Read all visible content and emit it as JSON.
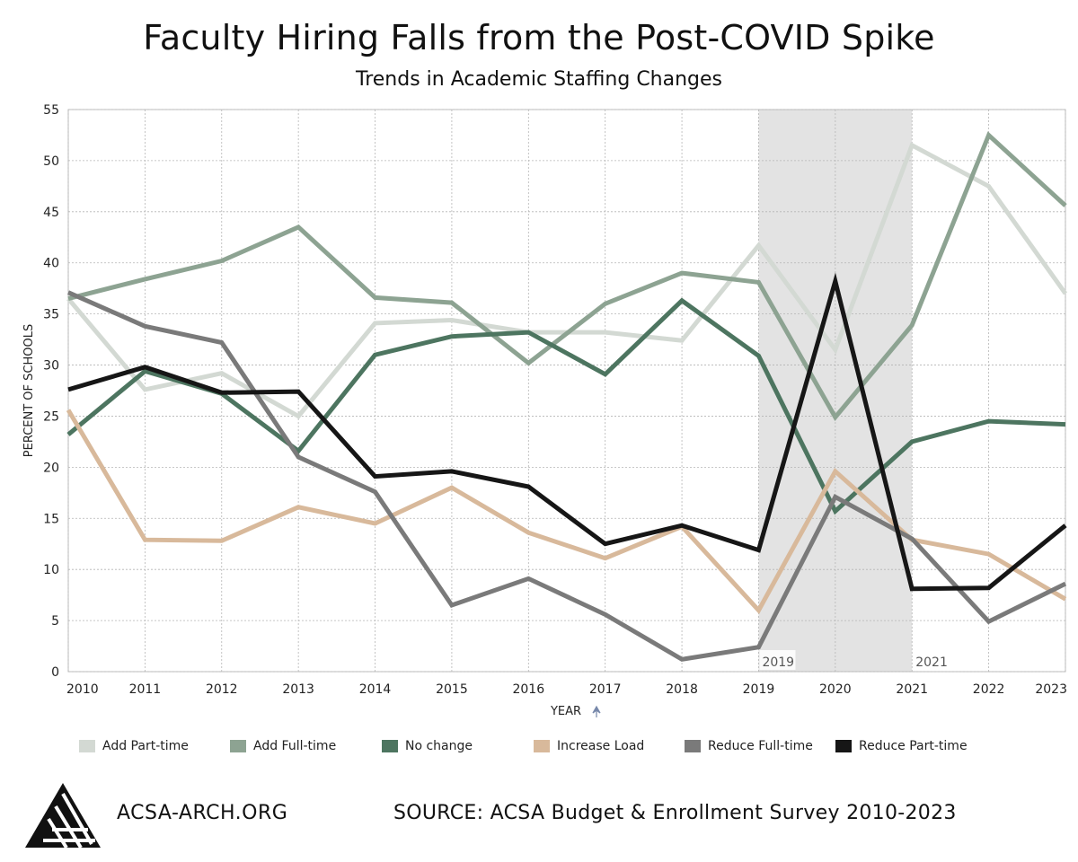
{
  "title": "Faculty Hiring Falls from the Post-COVID Spike",
  "subtitle": "Trends in Academic Staffing Changes",
  "footer": {
    "site": "ACSA-ARCH.ORG",
    "source": "SOURCE: ACSA Budget & Enrollment Survey 2010-2023"
  },
  "logo": {
    "icon": "acsa-triangle-logo"
  },
  "chart_data": {
    "type": "line",
    "xlabel": "YEAR",
    "ylabel": "PERCENT OF SCHOOLS",
    "x": [
      2010,
      2011,
      2012,
      2013,
      2014,
      2015,
      2016,
      2017,
      2018,
      2019,
      2020,
      2021,
      2022,
      2023
    ],
    "xlim": [
      2010,
      2023
    ],
    "ylim": [
      0,
      55
    ],
    "yticks": [
      0,
      5,
      10,
      15,
      20,
      25,
      30,
      35,
      40,
      45,
      50,
      55
    ],
    "grid": true,
    "legend_position": "bottom",
    "shaded_region": {
      "from": 2019,
      "to": 2021,
      "labels": [
        "2019",
        "2021"
      ],
      "color": "#e3e3e3"
    },
    "series": [
      {
        "name": "Add Part-time",
        "color": "#d3d9d3",
        "values": [
          36.5,
          27.6,
          29.2,
          25.0,
          34.1,
          34.4,
          33.2,
          33.2,
          32.4,
          41.7,
          31.5,
          51.5,
          47.5,
          37.0
        ]
      },
      {
        "name": "Add Full-time",
        "color": "#8da392",
        "values": [
          36.5,
          38.4,
          40.2,
          43.5,
          36.6,
          36.1,
          30.2,
          36.0,
          39.0,
          38.1,
          24.9,
          33.9,
          52.5,
          45.6
        ]
      },
      {
        "name": "No change",
        "color": "#4d7560",
        "values": [
          23.2,
          29.4,
          27.2,
          21.6,
          31.0,
          32.8,
          33.2,
          29.1,
          36.3,
          30.9,
          15.7,
          22.5,
          24.5,
          24.2
        ]
      },
      {
        "name": "Increase Load",
        "color": "#d8b99b",
        "values": [
          25.6,
          12.9,
          12.8,
          16.1,
          14.5,
          18.0,
          13.6,
          11.1,
          14.2,
          6.0,
          19.6,
          12.9,
          11.5,
          7.1
        ]
      },
      {
        "name": "Reduce Full-time",
        "color": "#7a7a7a",
        "values": [
          37.1,
          33.8,
          32.2,
          21.0,
          17.6,
          6.5,
          9.1,
          5.6,
          1.2,
          2.4,
          17.1,
          13.0,
          4.9,
          8.6
        ]
      },
      {
        "name": "Reduce Part-time",
        "color": "#161616",
        "values": [
          27.6,
          29.8,
          27.3,
          27.4,
          19.1,
          19.6,
          18.1,
          12.5,
          14.3,
          11.9,
          38.2,
          8.1,
          8.2,
          14.3
        ]
      }
    ]
  }
}
